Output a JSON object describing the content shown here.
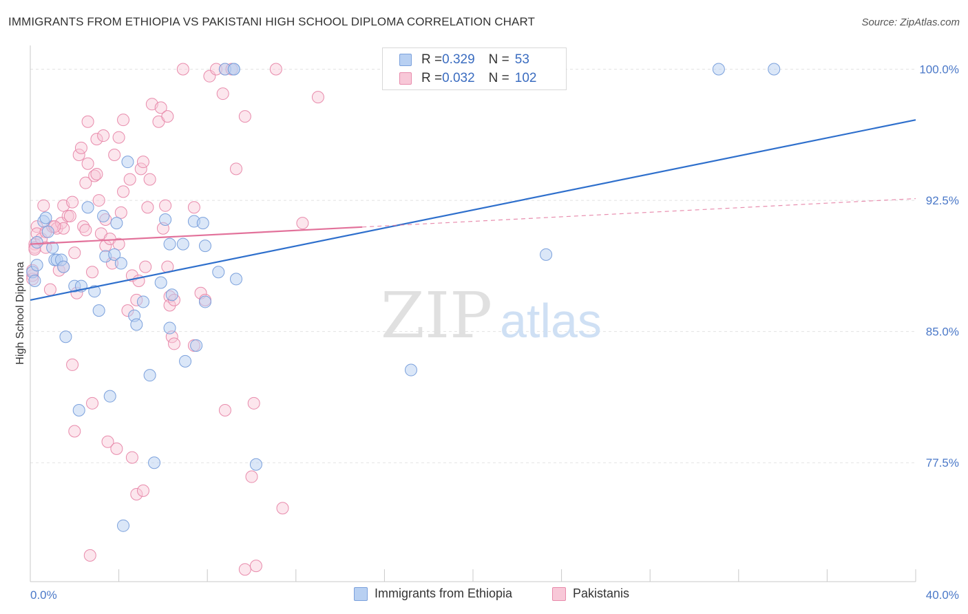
{
  "title": "IMMIGRANTS FROM ETHIOPIA VS PAKISTANI HIGH SCHOOL DIPLOMA CORRELATION CHART",
  "source": "Source: ZipAtlas.com",
  "watermark": {
    "zip": "ZIP",
    "atlas": "atlas"
  },
  "colors": {
    "blue_fill": "#b8d0f2",
    "blue_stroke": "#7aa0dc",
    "blue_line": "#2e6fcc",
    "pink_fill": "#f8c8d8",
    "pink_stroke": "#e88aab",
    "pink_line": "#e2719a",
    "label_blue": "#4a78c8"
  },
  "legend": {
    "rows": [
      {
        "r_label": "R = ",
        "r_value": "0.329",
        "n_label": "N = ",
        "n_value": "53"
      },
      {
        "r_label": "R = ",
        "r_value": "0.032",
        "n_label": "N = ",
        "n_value": "102"
      }
    ]
  },
  "bottom_legend": [
    "Immigrants from Ethiopia",
    "Pakistanis"
  ],
  "chart_data": {
    "type": "scatter",
    "xlabel": "",
    "ylabel": "High School Diploma",
    "xlim": [
      0.0,
      40.0
    ],
    "ylim": [
      70.7,
      101.2
    ],
    "x_tick_labels": [
      "0.0%",
      "40.0%"
    ],
    "y_ticks": [
      77.5,
      85.0,
      92.5,
      100.0
    ],
    "y_tick_labels": [
      "77.5%",
      "85.0%",
      "92.5%",
      "100.0%"
    ],
    "grid": "horizontal dashed",
    "series": [
      {
        "name": "Immigrants from Ethiopia",
        "color": "#b8d0f2",
        "R": 0.329,
        "N": 53,
        "trend": {
          "x": [
            0.0,
            40.0
          ],
          "y": [
            86.8,
            97.1
          ],
          "dashed_from": null
        },
        "points": [
          [
            0.1,
            88.4
          ],
          [
            0.2,
            87.9
          ],
          [
            0.3,
            90.1
          ],
          [
            0.3,
            88.8
          ],
          [
            0.6,
            91.3
          ],
          [
            0.7,
            91.5
          ],
          [
            0.8,
            90.7
          ],
          [
            1.0,
            89.8
          ],
          [
            1.1,
            89.1
          ],
          [
            1.2,
            89.1
          ],
          [
            1.4,
            89.1
          ],
          [
            1.5,
            88.7
          ],
          [
            1.6,
            84.7
          ],
          [
            2.0,
            87.6
          ],
          [
            2.2,
            80.5
          ],
          [
            2.3,
            87.6
          ],
          [
            2.6,
            92.1
          ],
          [
            2.9,
            87.3
          ],
          [
            3.1,
            86.2
          ],
          [
            3.3,
            91.6
          ],
          [
            3.4,
            89.3
          ],
          [
            3.6,
            81.3
          ],
          [
            3.8,
            89.4
          ],
          [
            3.9,
            91.2
          ],
          [
            4.1,
            88.9
          ],
          [
            4.2,
            73.9
          ],
          [
            4.4,
            94.7
          ],
          [
            4.7,
            85.9
          ],
          [
            4.8,
            85.4
          ],
          [
            5.1,
            86.7
          ],
          [
            5.4,
            82.5
          ],
          [
            5.6,
            77.5
          ],
          [
            5.9,
            87.8
          ],
          [
            6.1,
            91.4
          ],
          [
            6.3,
            90.0
          ],
          [
            6.4,
            87.1
          ],
          [
            6.9,
            90.0
          ],
          [
            6.3,
            85.2
          ],
          [
            7.0,
            83.3
          ],
          [
            7.4,
            91.3
          ],
          [
            7.5,
            84.2
          ],
          [
            7.8,
            91.2
          ],
          [
            7.9,
            86.7
          ],
          [
            7.9,
            89.9
          ],
          [
            8.5,
            88.4
          ],
          [
            8.8,
            100.0
          ],
          [
            9.2,
            100.0
          ],
          [
            9.2,
            100.0
          ],
          [
            9.3,
            88.0
          ],
          [
            10.2,
            77.4
          ],
          [
            17.2,
            82.8
          ],
          [
            23.3,
            89.4
          ],
          [
            31.1,
            100.0
          ],
          [
            33.6,
            100.0
          ]
        ]
      },
      {
        "name": "Pakistanis",
        "color": "#f8c8d8",
        "R": 0.032,
        "N": 102,
        "trend": {
          "x": [
            0.0,
            40.0
          ],
          "y": [
            90.0,
            92.6
          ],
          "dashed_from": 15.0
        },
        "points": [
          [
            0.1,
            88.2
          ],
          [
            0.1,
            88.0
          ],
          [
            0.2,
            90.0
          ],
          [
            0.2,
            89.8
          ],
          [
            0.3,
            91.0
          ],
          [
            0.3,
            90.6
          ],
          [
            0.5,
            90.3
          ],
          [
            0.6,
            92.2
          ],
          [
            0.7,
            90.7
          ],
          [
            0.7,
            89.8
          ],
          [
            0.9,
            87.4
          ],
          [
            1.0,
            91.0
          ],
          [
            1.2,
            90.9
          ],
          [
            1.3,
            88.5
          ],
          [
            1.4,
            91.2
          ],
          [
            1.5,
            88.7
          ],
          [
            1.5,
            90.9
          ],
          [
            1.5,
            92.2
          ],
          [
            1.7,
            91.6
          ],
          [
            1.8,
            91.6
          ],
          [
            1.9,
            92.4
          ],
          [
            1.9,
            83.1
          ],
          [
            2.0,
            79.3
          ],
          [
            2.0,
            89.5
          ],
          [
            2.1,
            87.2
          ],
          [
            2.2,
            95.1
          ],
          [
            2.3,
            95.5
          ],
          [
            2.4,
            91.0
          ],
          [
            2.5,
            90.8
          ],
          [
            2.5,
            93.5
          ],
          [
            2.6,
            94.6
          ],
          [
            2.6,
            97.0
          ],
          [
            2.7,
            72.2
          ],
          [
            2.8,
            80.9
          ],
          [
            2.8,
            88.4
          ],
          [
            2.9,
            93.9
          ],
          [
            3.0,
            94.0
          ],
          [
            3.0,
            96.0
          ],
          [
            3.1,
            92.5
          ],
          [
            3.2,
            90.6
          ],
          [
            3.3,
            96.2
          ],
          [
            3.4,
            89.9
          ],
          [
            3.4,
            91.4
          ],
          [
            3.5,
            78.7
          ],
          [
            3.6,
            90.3
          ],
          [
            3.7,
            88.9
          ],
          [
            3.8,
            95.1
          ],
          [
            3.9,
            78.3
          ],
          [
            4.0,
            90.0
          ],
          [
            4.0,
            96.1
          ],
          [
            4.1,
            91.8
          ],
          [
            4.2,
            97.1
          ],
          [
            4.2,
            93.0
          ],
          [
            4.4,
            86.2
          ],
          [
            4.5,
            93.7
          ],
          [
            4.6,
            77.8
          ],
          [
            4.6,
            88.2
          ],
          [
            4.8,
            75.7
          ],
          [
            4.8,
            86.8
          ],
          [
            4.9,
            87.9
          ],
          [
            5.0,
            94.3
          ],
          [
            5.1,
            75.9
          ],
          [
            5.1,
            94.7
          ],
          [
            5.2,
            88.7
          ],
          [
            5.3,
            92.1
          ],
          [
            5.4,
            93.7
          ],
          [
            5.5,
            98.0
          ],
          [
            5.8,
            97.0
          ],
          [
            5.9,
            97.8
          ],
          [
            6.0,
            90.9
          ],
          [
            6.1,
            92.2
          ],
          [
            6.2,
            97.3
          ],
          [
            6.2,
            88.7
          ],
          [
            6.3,
            87.0
          ],
          [
            6.3,
            86.5
          ],
          [
            6.4,
            84.7
          ],
          [
            6.5,
            84.3
          ],
          [
            6.5,
            86.8
          ],
          [
            6.9,
            100.0
          ],
          [
            7.4,
            92.1
          ],
          [
            7.4,
            84.2
          ],
          [
            7.7,
            87.2
          ],
          [
            7.9,
            86.8
          ],
          [
            8.1,
            99.6
          ],
          [
            8.4,
            100.0
          ],
          [
            8.7,
            98.6
          ],
          [
            8.8,
            80.5
          ],
          [
            8.8,
            100.0
          ],
          [
            9.1,
            100.0
          ],
          [
            9.3,
            94.3
          ],
          [
            9.7,
            97.3
          ],
          [
            9.7,
            71.4
          ],
          [
            10.0,
            76.7
          ],
          [
            10.1,
            80.9
          ],
          [
            10.2,
            71.6
          ],
          [
            11.1,
            100.0
          ],
          [
            11.4,
            74.9
          ],
          [
            12.3,
            91.2
          ],
          [
            13.0,
            98.4
          ],
          [
            0.1,
            88.5
          ],
          [
            0.2,
            89.7
          ],
          [
            1.1,
            91.0
          ]
        ]
      }
    ]
  }
}
